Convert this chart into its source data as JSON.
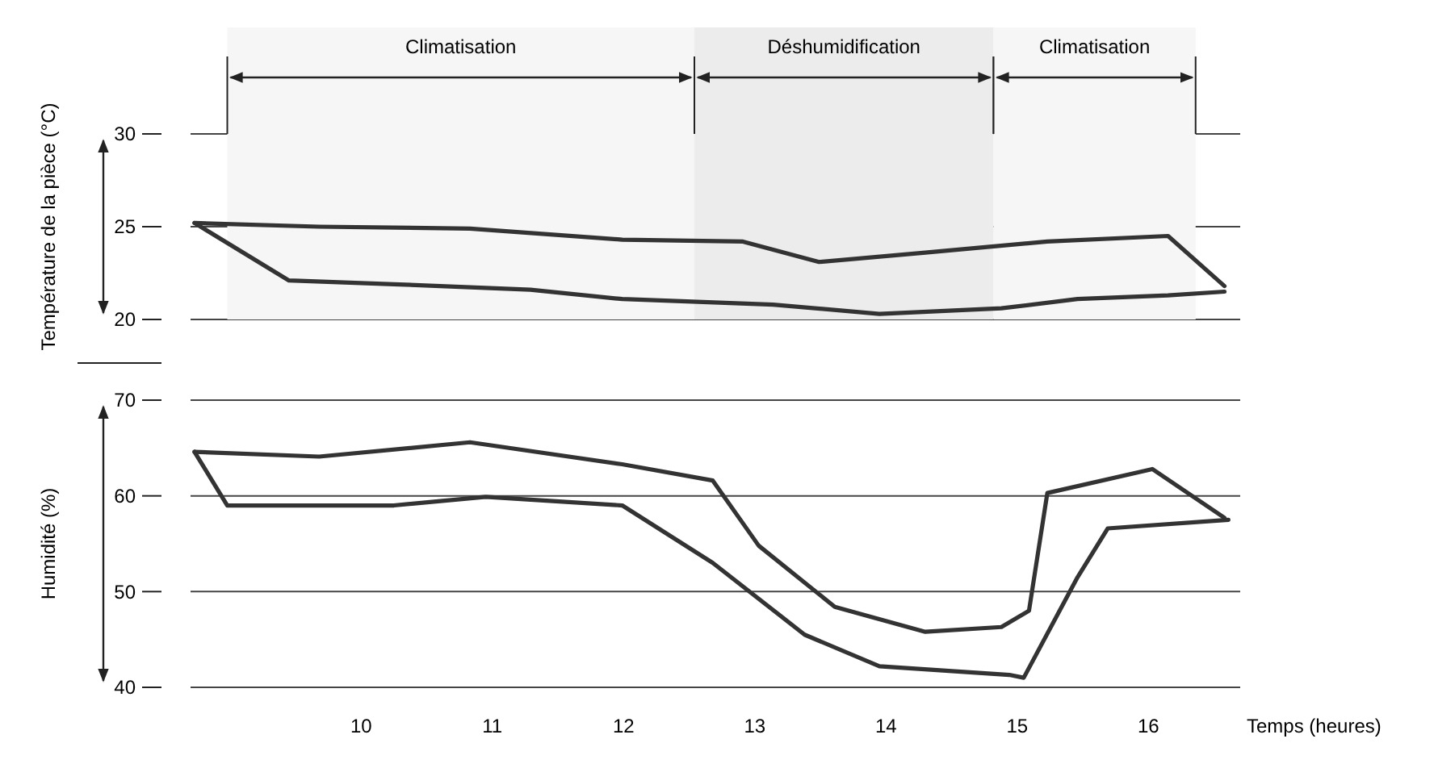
{
  "chart_data": [
    {
      "type": "line",
      "ylabel": "Température de la pièce (°C)",
      "xlim": [
        8.7,
        16.7
      ],
      "ylim": [
        20,
        30
      ],
      "yticks": [
        20,
        25,
        30
      ],
      "grid": "y",
      "tick_labels": "y",
      "marker": "none",
      "line_style": "solid",
      "bands": [
        {
          "axis": "x",
          "from": 8.98,
          "to": 12.54,
          "label": "Climatisation"
        },
        {
          "axis": "x",
          "from": 12.54,
          "to": 14.82,
          "label": "Déshumidification"
        },
        {
          "axis": "x",
          "from": 14.82,
          "to": 16.36,
          "label": "Climatisation"
        }
      ],
      "series": [
        {
          "color": "#333333",
          "x": [
            8.73,
            9.68,
            10.83,
            11.99,
            12.91,
            13.49,
            14.3,
            15.23,
            16.15,
            16.58
          ],
          "values": [
            25.2,
            25,
            24.9,
            24.3,
            24.2,
            23.1,
            23.6,
            24.2,
            24.5,
            21.8
          ]
        },
        {
          "color": "#333333",
          "x": [
            8.73,
            9.45,
            10.25,
            11.29,
            11.99,
            13.14,
            13.95,
            14.88,
            15.46,
            16.15,
            16.58
          ],
          "values": [
            25.2,
            22.1,
            21.9,
            21.6,
            21.1,
            20.8,
            20.3,
            20.6,
            21.1,
            21.3,
            21.5
          ]
        }
      ]
    },
    {
      "type": "line",
      "ylabel": "Humidité (%)",
      "xlabel": "Temps (heures)",
      "xlim": [
        8.7,
        16.7
      ],
      "ylim": [
        40,
        70
      ],
      "yticks": [
        40,
        50,
        60,
        70
      ],
      "xticks": [
        10,
        11,
        12,
        13,
        14,
        15,
        16
      ],
      "grid": "y",
      "marker": "none",
      "line_style": "solid",
      "series": [
        {
          "color": "#333333",
          "x": [
            8.73,
            9.68,
            10.83,
            11.99,
            12.68,
            13.03,
            13.61,
            14.3,
            14.88,
            15.09,
            15.23,
            16.03,
            16.58
          ],
          "values": [
            64.6,
            64.1,
            65.6,
            63.3,
            61.6,
            54.8,
            48.4,
            45.8,
            46.3,
            48,
            60.3,
            62.8,
            57.7
          ]
        },
        {
          "color": "#333333",
          "x": [
            8.73,
            8.98,
            10.25,
            10.95,
            11.99,
            12.68,
            13.38,
            13.95,
            14.94,
            15.05,
            15.46,
            15.69,
            16.61
          ],
          "values": [
            64.6,
            59,
            59,
            59.9,
            59,
            53,
            45.5,
            42.2,
            41.3,
            41,
            51.5,
            56.6,
            57.5
          ]
        }
      ]
    }
  ]
}
